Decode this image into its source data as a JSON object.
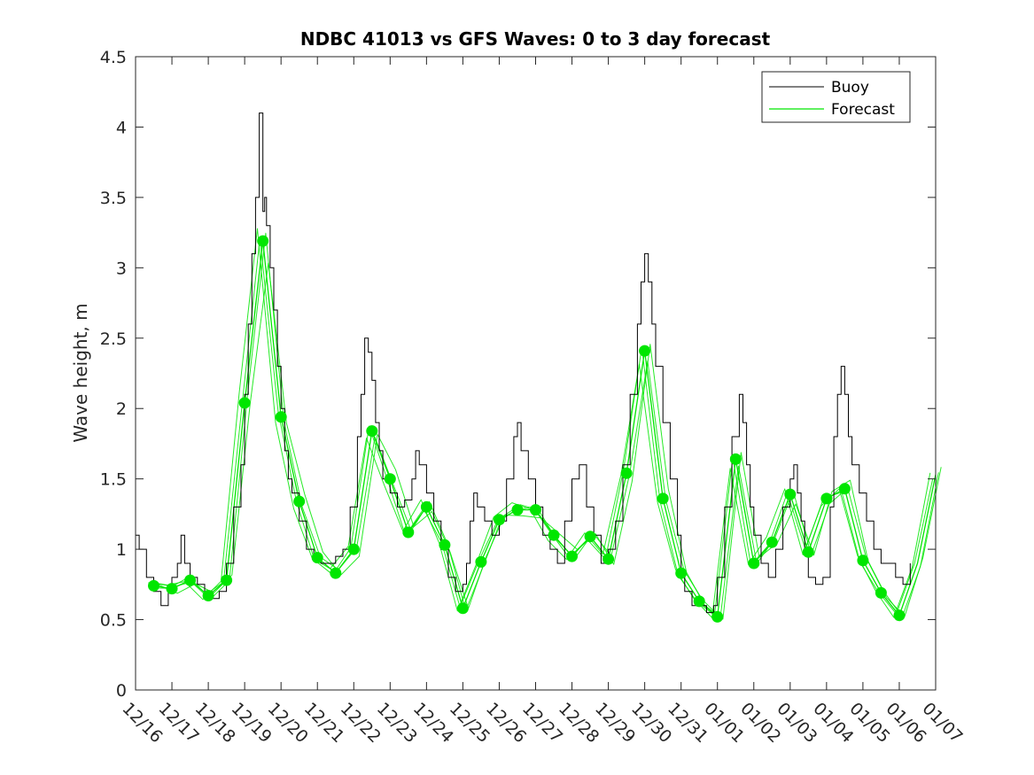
{
  "chart_data": {
    "type": "line",
    "title": "NDBC 41013 vs GFS Waves: 0 to 3 day forecast",
    "xlabel": "",
    "ylabel": "Wave height, m",
    "xlim": [
      0,
      22
    ],
    "ylim": [
      0,
      4.5
    ],
    "yticks": [
      0,
      0.5,
      1,
      1.5,
      2,
      2.5,
      3,
      3.5,
      4,
      4.5
    ],
    "ytick_labels": [
      "0",
      "0.5",
      "1",
      "1.5",
      "2",
      "2.5",
      "3",
      "3.5",
      "4",
      "4.5"
    ],
    "xtick_labels": [
      "12/16",
      "12/17",
      "12/18",
      "12/19",
      "12/20",
      "12/21",
      "12/22",
      "12/23",
      "12/24",
      "12/25",
      "12/26",
      "12/27",
      "12/28",
      "12/29",
      "12/30",
      "12/31",
      "01/01",
      "01/02",
      "01/03",
      "01/04",
      "01/05",
      "01/06",
      "01/07"
    ],
    "legend": {
      "position": "top-right",
      "entries": [
        "Buoy",
        "Forecast"
      ]
    },
    "colors": {
      "buoy": "#000000",
      "forecast": "#00e600",
      "axis": "#262626"
    },
    "series": [
      {
        "name": "Buoy",
        "x": [
          0,
          0.1,
          0.3,
          0.5,
          0.7,
          0.9,
          1.0,
          1.15,
          1.25,
          1.35,
          1.5,
          1.7,
          1.9,
          2.1,
          2.3,
          2.5,
          2.7,
          2.9,
          3.0,
          3.1,
          3.2,
          3.3,
          3.4,
          3.5,
          3.55,
          3.6,
          3.7,
          3.8,
          3.9,
          4.0,
          4.1,
          4.2,
          4.3,
          4.5,
          4.7,
          4.9,
          5.1,
          5.3,
          5.5,
          5.7,
          5.9,
          6.1,
          6.2,
          6.3,
          6.4,
          6.5,
          6.6,
          6.7,
          6.8,
          7.0,
          7.2,
          7.4,
          7.6,
          7.7,
          7.8,
          8.0,
          8.2,
          8.4,
          8.6,
          8.8,
          9.0,
          9.1,
          9.2,
          9.3,
          9.4,
          9.6,
          9.8,
          10.0,
          10.2,
          10.4,
          10.5,
          10.6,
          10.8,
          11.0,
          11.2,
          11.4,
          11.6,
          11.8,
          12.0,
          12.2,
          12.4,
          12.6,
          12.8,
          13.0,
          13.2,
          13.4,
          13.6,
          13.8,
          13.9,
          14.0,
          14.1,
          14.2,
          14.3,
          14.5,
          14.7,
          14.9,
          15.0,
          15.1,
          15.3,
          15.5,
          15.7,
          15.9,
          16.0,
          16.2,
          16.4,
          16.6,
          16.7,
          16.8,
          16.9,
          17.0,
          17.2,
          17.4,
          17.6,
          17.8,
          18.0,
          18.1,
          18.2,
          18.3,
          18.4,
          18.5,
          18.7,
          18.9,
          19.1,
          19.2,
          19.3,
          19.4,
          19.5,
          19.6,
          19.7,
          19.9,
          20.1,
          20.3,
          20.5,
          20.7,
          20.9,
          21.1,
          21.3
        ],
        "values": [
          1.1,
          1.0,
          0.8,
          0.7,
          0.6,
          0.7,
          0.8,
          0.9,
          1.1,
          0.9,
          0.8,
          0.75,
          0.7,
          0.65,
          0.7,
          0.9,
          1.3,
          1.6,
          2.1,
          2.6,
          3.1,
          3.5,
          4.1,
          3.4,
          3.5,
          3.3,
          3.0,
          2.7,
          2.3,
          2.0,
          1.7,
          1.5,
          1.4,
          1.2,
          1.0,
          0.95,
          0.9,
          0.9,
          0.95,
          1.0,
          1.3,
          1.8,
          2.1,
          2.5,
          2.4,
          2.2,
          1.9,
          1.7,
          1.5,
          1.4,
          1.3,
          1.35,
          1.5,
          1.7,
          1.6,
          1.4,
          1.2,
          1.0,
          0.8,
          0.7,
          0.75,
          0.9,
          1.2,
          1.4,
          1.3,
          1.2,
          1.1,
          1.2,
          1.5,
          1.8,
          1.9,
          1.7,
          1.5,
          1.3,
          1.1,
          1.0,
          0.9,
          1.2,
          1.5,
          1.6,
          1.3,
          1.1,
          0.9,
          1.0,
          1.2,
          1.6,
          2.1,
          2.6,
          2.9,
          3.1,
          2.9,
          2.6,
          2.3,
          1.9,
          1.5,
          1.1,
          0.8,
          0.7,
          0.6,
          0.6,
          0.55,
          0.6,
          0.8,
          1.3,
          1.8,
          2.1,
          1.9,
          1.6,
          1.3,
          1.1,
          0.9,
          0.8,
          1.0,
          1.3,
          1.5,
          1.6,
          1.4,
          1.2,
          1.0,
          0.8,
          0.75,
          0.8,
          1.3,
          1.8,
          2.1,
          2.3,
          2.1,
          1.8,
          1.6,
          1.4,
          1.2,
          1.0,
          0.9,
          0.9,
          0.8,
          0.75,
          0.9
        ]
      },
      {
        "name": "Forecast",
        "x": [
          0.5,
          1.0,
          1.5,
          2.0,
          2.5,
          3.0,
          3.5,
          4.0,
          4.5,
          5.0,
          5.5,
          6.0,
          6.5,
          7.0,
          7.5,
          8.0,
          8.5,
          9.0,
          9.5,
          10.0,
          10.5,
          11.0,
          11.5,
          12.0,
          12.5,
          13.0,
          13.5,
          14.0,
          14.5,
          15.0,
          15.5,
          16.0,
          16.5,
          17.0,
          17.5,
          18.0,
          18.5,
          19.0,
          19.5,
          20.0,
          20.5,
          21.0,
          21.5,
          22.0
        ],
        "values": [
          0.74,
          0.72,
          0.78,
          0.67,
          0.78,
          2.04,
          3.19,
          1.94,
          1.34,
          0.94,
          0.83,
          1.0,
          1.84,
          1.5,
          1.12,
          1.3,
          1.03,
          0.58,
          0.91,
          1.21,
          1.28,
          1.28,
          1.1,
          0.95,
          1.09,
          0.93,
          1.54,
          2.41,
          1.36,
          0.83,
          0.63,
          0.52,
          1.64,
          0.9,
          1.05,
          1.39,
          0.98,
          1.36,
          1.43,
          0.92,
          0.69,
          0.53,
          0.9,
          1.53
        ]
      }
    ],
    "forecast_markers": {
      "x": [
        0.5,
        1.0,
        1.5,
        2.0,
        2.5,
        3.0,
        3.5,
        4.0,
        4.5,
        5.0,
        5.5,
        6.0,
        6.5,
        7.0,
        7.5,
        8.0,
        8.5,
        9.0,
        9.5,
        10.0,
        10.5,
        11.0,
        11.5,
        12.0,
        12.5,
        13.0,
        13.5,
        14.0,
        14.5,
        15.0,
        15.5,
        16.0,
        16.5,
        17.0,
        17.5,
        18.0,
        18.5,
        19.0,
        19.5,
        20.0,
        20.5,
        21.0
      ],
      "values": [
        0.74,
        0.72,
        0.78,
        0.67,
        0.78,
        2.04,
        3.19,
        1.94,
        1.34,
        0.94,
        0.83,
        1.0,
        1.84,
        1.5,
        1.12,
        1.3,
        1.03,
        0.58,
        0.91,
        1.21,
        1.28,
        1.28,
        1.1,
        0.95,
        1.09,
        0.93,
        1.54,
        2.41,
        1.36,
        0.83,
        0.63,
        0.52,
        1.64,
        0.9,
        1.05,
        1.39,
        0.98,
        1.36,
        1.43,
        0.92,
        0.69,
        0.53
      ]
    }
  }
}
